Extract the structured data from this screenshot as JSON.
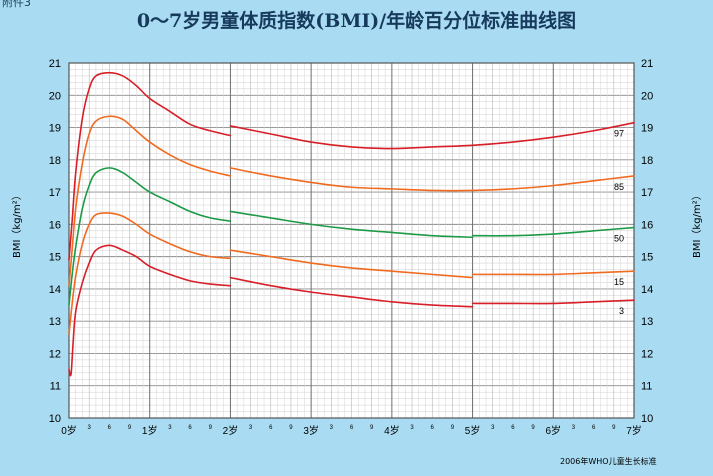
{
  "corner_label": "附件3",
  "title": "0～7岁男童体质指数(BMI)/年龄百分位标准曲线图",
  "footnote": "2006年WHO儿童生长标准",
  "chart_data": {
    "type": "line",
    "title": "0～7岁男童体质指数(BMI)/年龄百分位标准曲线图",
    "xlabel": "",
    "ylabel": "BMI（kg/m²）",
    "x_unit": "months",
    "xlim": [
      0,
      84
    ],
    "ylim": [
      10,
      21
    ],
    "yticks": [
      10,
      11,
      12,
      13,
      14,
      15,
      16,
      17,
      18,
      19,
      20,
      21
    ],
    "x_major_labels": [
      {
        "month": 0,
        "label": "0岁"
      },
      {
        "month": 12,
        "label": "1岁"
      },
      {
        "month": 24,
        "label": "2岁"
      },
      {
        "month": 36,
        "label": "3岁"
      },
      {
        "month": 48,
        "label": "4岁"
      },
      {
        "month": 60,
        "label": "5岁"
      },
      {
        "month": 72,
        "label": "6岁"
      },
      {
        "month": 84,
        "label": "7岁"
      }
    ],
    "x_minor_labels": [
      "3",
      "6",
      "9"
    ],
    "grid": true,
    "series": [
      {
        "name": "97",
        "color": "#d81e27",
        "segments": [
          {
            "x": [
              0,
              0.5,
              1,
              2,
              3,
              4,
              6,
              8,
              10,
              12,
              15,
              18,
              21,
              24
            ],
            "y": [
              14.9,
              16.2,
              17.6,
              19.3,
              20.2,
              20.6,
              20.7,
              20.6,
              20.3,
              19.9,
              19.5,
              19.1,
              18.9,
              18.75
            ]
          },
          {
            "x": [
              24,
              30,
              36,
              42,
              48,
              54,
              60,
              66,
              72,
              78,
              84
            ],
            "y": [
              19.05,
              18.8,
              18.55,
              18.4,
              18.35,
              18.4,
              18.45,
              18.55,
              18.7,
              18.9,
              19.15
            ]
          }
        ]
      },
      {
        "name": "85",
        "color": "#f06a1f",
        "segments": [
          {
            "x": [
              0,
              0.5,
              1,
              2,
              3,
              4,
              6,
              8,
              10,
              12,
              15,
              18,
              21,
              24
            ],
            "y": [
              14.1,
              15.3,
              16.5,
              17.9,
              18.8,
              19.2,
              19.35,
              19.25,
              18.9,
              18.55,
              18.15,
              17.85,
              17.65,
              17.5
            ]
          },
          {
            "x": [
              24,
              30,
              36,
              42,
              48,
              54,
              60,
              66,
              72,
              78,
              84
            ],
            "y": [
              17.75,
              17.5,
              17.3,
              17.15,
              17.1,
              17.05,
              17.05,
              17.1,
              17.2,
              17.35,
              17.5
            ]
          }
        ]
      },
      {
        "name": "50",
        "color": "#1c9a46",
        "segments": [
          {
            "x": [
              0,
              0.5,
              1,
              2,
              3,
              4,
              6,
              8,
              10,
              12,
              15,
              18,
              21,
              24
            ],
            "y": [
              13.5,
              14.5,
              15.3,
              16.5,
              17.2,
              17.6,
              17.75,
              17.6,
              17.3,
              17.0,
              16.7,
              16.4,
              16.2,
              16.1
            ]
          },
          {
            "x": [
              24,
              30,
              36,
              42,
              48,
              54,
              60
            ],
            "y": [
              16.4,
              16.2,
              16.0,
              15.85,
              15.75,
              15.65,
              15.6
            ]
          },
          {
            "x": [
              60,
              66,
              72,
              78,
              84
            ],
            "y": [
              15.65,
              15.65,
              15.7,
              15.8,
              15.9
            ]
          }
        ]
      },
      {
        "name": "15",
        "color": "#f06a1f",
        "segments": [
          {
            "x": [
              0,
              0.5,
              1,
              2,
              3,
              4,
              6,
              8,
              10,
              12,
              15,
              18,
              21,
              24
            ],
            "y": [
              12.6,
              13.6,
              14.4,
              15.4,
              16.0,
              16.3,
              16.35,
              16.25,
              16.0,
              15.7,
              15.4,
              15.15,
              15.0,
              14.95
            ]
          },
          {
            "x": [
              24,
              30,
              36,
              42,
              48,
              54,
              60
            ],
            "y": [
              15.2,
              15.0,
              14.8,
              14.65,
              14.55,
              14.45,
              14.35
            ]
          },
          {
            "x": [
              60,
              66,
              72,
              78,
              84
            ],
            "y": [
              14.45,
              14.45,
              14.45,
              14.5,
              14.55
            ]
          }
        ]
      },
      {
        "name": "3",
        "color": "#d81e27",
        "segments": [
          {
            "x": [
              0,
              0.3,
              0.6,
              1,
              2,
              3,
              4,
              6,
              8,
              10,
              12,
              15,
              18,
              21,
              24
            ],
            "y": [
              11.5,
              11.35,
              12.3,
              13.3,
              14.2,
              14.8,
              15.2,
              15.35,
              15.2,
              15.0,
              14.7,
              14.45,
              14.25,
              14.15,
              14.1
            ]
          },
          {
            "x": [
              24,
              30,
              36,
              42,
              48,
              54,
              60
            ],
            "y": [
              14.35,
              14.1,
              13.9,
              13.75,
              13.6,
              13.5,
              13.45
            ]
          },
          {
            "x": [
              60,
              66,
              72,
              78,
              84
            ],
            "y": [
              13.55,
              13.55,
              13.55,
              13.6,
              13.65
            ]
          }
        ]
      }
    ]
  }
}
